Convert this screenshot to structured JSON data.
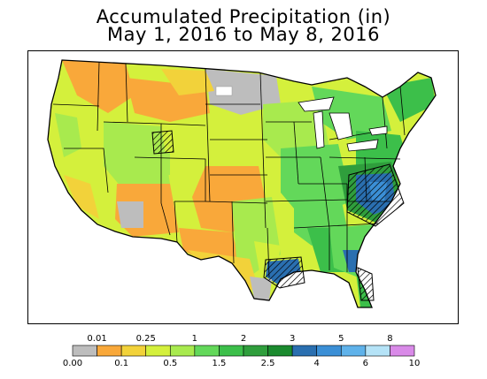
{
  "title": {
    "line1": "Accumulated Precipitation (in)",
    "line2": "May 1, 2016 to May 8, 2016"
  },
  "legend": {
    "colors": [
      "#bdbdbd",
      "#f9a83a",
      "#f2d23a",
      "#d4f03c",
      "#a8ea4e",
      "#63d85a",
      "#3cbf4a",
      "#2f9e3c",
      "#1b8a2e",
      "#2a6fb0",
      "#3b8fd6",
      "#5fb2ea",
      "#b5e3f7",
      "#d98ae8"
    ],
    "labels_top": [
      "0.01",
      "0.25",
      "1",
      "2",
      "3",
      "5",
      "8"
    ],
    "labels_bottom": [
      "0.00",
      "0.1",
      "0.5",
      "1.5",
      "2.5",
      "4",
      "6",
      "10"
    ]
  }
}
